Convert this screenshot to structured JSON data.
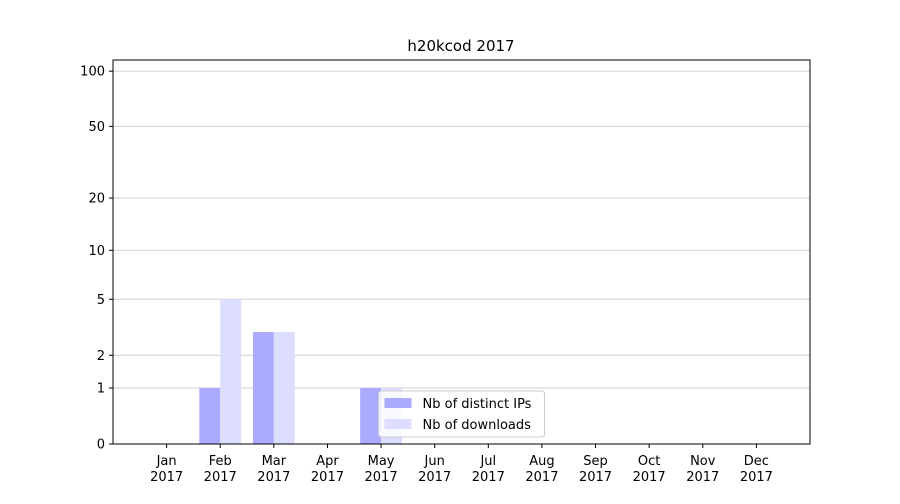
{
  "chart_data": {
    "type": "bar",
    "title": "h20kcod 2017",
    "categories": [
      "Jan 2017",
      "Feb 2017",
      "Mar 2017",
      "Apr 2017",
      "May 2017",
      "Jun 2017",
      "Jul 2017",
      "Aug 2017",
      "Sep 2017",
      "Oct 2017",
      "Nov 2017",
      "Dec 2017"
    ],
    "series": [
      {
        "name": "Nb of distinct IPs",
        "color": "#aaaaff",
        "values": [
          0,
          1,
          3,
          0,
          1,
          0,
          0,
          0,
          0,
          0,
          0,
          0
        ]
      },
      {
        "name": "Nb of downloads",
        "color": "#ddddff",
        "values": [
          0,
          5,
          3,
          0,
          1,
          0,
          0,
          0,
          0,
          0,
          0,
          0
        ]
      }
    ],
    "yscale": "log1p",
    "ylim": [
      0,
      115
    ],
    "yticks": [
      0,
      1,
      2,
      5,
      10,
      20,
      50,
      100
    ],
    "grid": true,
    "legend": "lower center"
  }
}
